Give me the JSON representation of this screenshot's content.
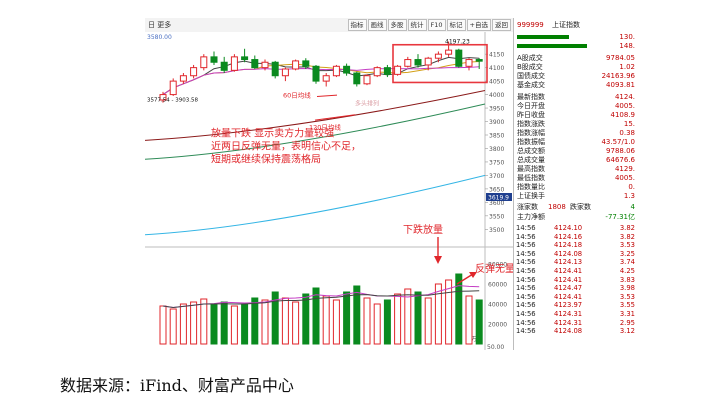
{
  "toolbar": {
    "left_label": "日 更多",
    "buttons": [
      "指标",
      "画线",
      "多股",
      "统计",
      "F10",
      "标记",
      "+自选",
      "返回"
    ]
  },
  "chart": {
    "price_ticks": [
      "4150",
      "4100",
      "4050",
      "4000",
      "3950",
      "3900",
      "3850",
      "3800",
      "3750",
      "3700",
      "3650",
      "3600",
      "3550",
      "3500"
    ],
    "vol_ticks": [
      "80000",
      "60000",
      "40000",
      "20000",
      "万"
    ],
    "vol_bottom_tick": "50.00",
    "top_left_value": "3580.00",
    "high_label": "4197.23",
    "low_label": "3577.54 - 3903.58",
    "current_price_box": "3619.9",
    "ma60_label": "60日均线",
    "ma120_label": "120日均线",
    "faint_label": "多头排列",
    "annotation_main": [
      "放量下跌 显示卖方力量较强",
      "近两日反弹无量，表明信心不足，",
      "短期或继续保持震荡格局"
    ],
    "annotation_vol_drop": "下跌放量",
    "annotation_rebound": "反弹无量",
    "colors": {
      "up": "#e0262b",
      "down": "#0a8a1f",
      "annotation": "#e0262b",
      "box": "#e8373e"
    }
  },
  "chart_data": {
    "type": "candlestick",
    "candles": [
      [
        3980,
        4010,
        3970,
        4000
      ],
      [
        4000,
        4060,
        3995,
        4050
      ],
      [
        4050,
        4080,
        4040,
        4070
      ],
      [
        4070,
        4110,
        4060,
        4100
      ],
      [
        4100,
        4150,
        4090,
        4140
      ],
      [
        4140,
        4160,
        4110,
        4120
      ],
      [
        4120,
        4140,
        4080,
        4090
      ],
      [
        4090,
        4150,
        4085,
        4140
      ],
      [
        4140,
        4170,
        4120,
        4130
      ],
      [
        4130,
        4145,
        4095,
        4100
      ],
      [
        4100,
        4130,
        4090,
        4120
      ],
      [
        4120,
        4125,
        4060,
        4070
      ],
      [
        4070,
        4100,
        4050,
        4095
      ],
      [
        4095,
        4130,
        4090,
        4125
      ],
      [
        4125,
        4135,
        4095,
        4105
      ],
      [
        4105,
        4110,
        4040,
        4050
      ],
      [
        4050,
        4080,
        4030,
        4070
      ],
      [
        4070,
        4110,
        4065,
        4105
      ],
      [
        4105,
        4115,
        4070,
        4080
      ],
      [
        4080,
        4085,
        4030,
        4040
      ],
      [
        4040,
        4075,
        4035,
        4070
      ],
      [
        4070,
        4105,
        4065,
        4100
      ],
      [
        4100,
        4110,
        4065,
        4075
      ],
      [
        4075,
        4110,
        4070,
        4105
      ],
      [
        4105,
        4140,
        4100,
        4130
      ],
      [
        4130,
        4150,
        4100,
        4110
      ],
      [
        4110,
        4140,
        4090,
        4135
      ],
      [
        4135,
        4160,
        4120,
        4150
      ],
      [
        4150,
        4197,
        4140,
        4165
      ],
      [
        4165,
        4170,
        4100,
        4105
      ],
      [
        4105,
        4135,
        4090,
        4130
      ],
      [
        4130,
        4135,
        4095,
        4124
      ]
    ],
    "volumes": [
      38,
      35,
      40,
      42,
      45,
      40,
      42,
      38,
      40,
      46,
      44,
      52,
      46,
      42,
      50,
      56,
      48,
      44,
      52,
      58,
      46,
      40,
      44,
      50,
      55,
      52,
      46,
      60,
      64,
      70,
      48,
      44
    ],
    "ylim": [
      3490,
      4210
    ],
    "vol_ylim": [
      0,
      90000
    ]
  },
  "side": {
    "title_code": "999999",
    "title_name": "上证指数",
    "top_bars": [
      {
        "value": "130.",
        "color": "#c00000"
      },
      {
        "value": "148.",
        "color": "#c00000"
      }
    ],
    "rows1": [
      {
        "k": "A股成交",
        "v": "9784.05"
      },
      {
        "k": "B股成交",
        "v": "1.02"
      },
      {
        "k": "国债成交",
        "v": "24163.96"
      },
      {
        "k": "基金成交",
        "v": "4093.81"
      }
    ],
    "rows2": [
      {
        "k": "最新指数",
        "v": "4124."
      },
      {
        "k": "今日开盘",
        "v": "4005."
      },
      {
        "k": "昨日收盘",
        "v": "4108.9"
      },
      {
        "k": "指数涨跌",
        "v": "15."
      },
      {
        "k": "指数涨幅",
        "v": "0.38"
      },
      {
        "k": "指数振幅",
        "v": "43.57/1.0"
      },
      {
        "k": "总成交额",
        "v": "9788.06"
      },
      {
        "k": "总成交量",
        "v": "64676.6"
      },
      {
        "k": "最高指数",
        "v": "4129."
      },
      {
        "k": "最低指数",
        "v": "4005."
      },
      {
        "k": "指数量比",
        "v": "0."
      },
      {
        "k": "上证换手",
        "v": "1.3"
      }
    ],
    "updown_label": "涨家数",
    "updown_num": "1808",
    "down_label": "跌家数",
    "down_num": "4",
    "net_label": "主力净额",
    "net_value": "-77.31亿",
    "ticks": [
      {
        "t": "14:56",
        "p": "4124.10",
        "v": "3.82"
      },
      {
        "t": "14:56",
        "p": "4124.16",
        "v": "3.82"
      },
      {
        "t": "14:56",
        "p": "4124.18",
        "v": "3.53"
      },
      {
        "t": "14:56",
        "p": "4124.08",
        "v": "3.25"
      },
      {
        "t": "14:56",
        "p": "4124.13",
        "v": "3.74"
      },
      {
        "t": "14:56",
        "p": "4124.41",
        "v": "4.25"
      },
      {
        "t": "14:56",
        "p": "4124.41",
        "v": "3.83"
      },
      {
        "t": "14:56",
        "p": "4124.47",
        "v": "3.98"
      },
      {
        "t": "14:56",
        "p": "4124.41",
        "v": "3.53"
      },
      {
        "t": "14:56",
        "p": "4123.97",
        "v": "3.55"
      },
      {
        "t": "14:56",
        "p": "4124.31",
        "v": "3.31"
      },
      {
        "t": "14:56",
        "p": "4124.31",
        "v": "2.95"
      },
      {
        "t": "14:56",
        "p": "4124.08",
        "v": "3.12"
      }
    ]
  },
  "source_text": "数据来源：iFind、财富产品中心"
}
